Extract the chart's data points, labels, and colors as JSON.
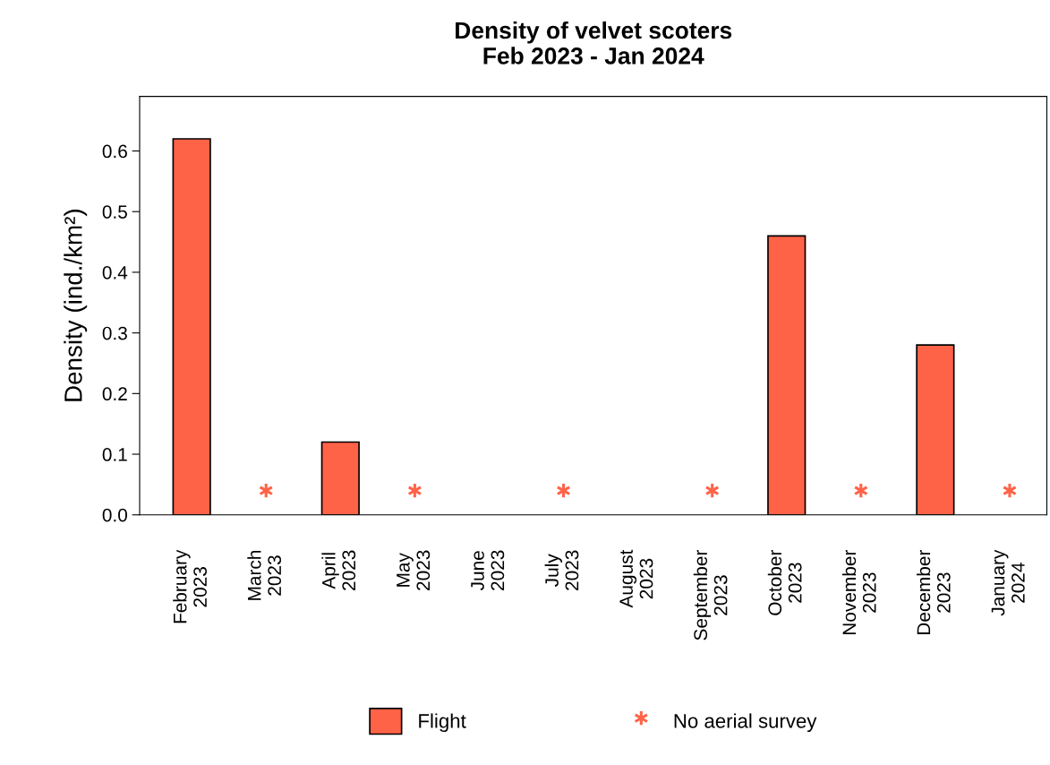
{
  "chart_data": {
    "type": "bar",
    "title": "Density of velvet scoters\nFeb 2023 - Jan 2024",
    "ylabel": "Density (ind./km²)",
    "categories": [
      "February\n2023",
      "March\n2023",
      "April\n2023",
      "May\n2023",
      "June\n2023",
      "July\n2023",
      "August\n2023",
      "September\n2023",
      "October\n2023",
      "November\n2023",
      "December\n2023",
      "January\n2024"
    ],
    "series": [
      {
        "name": "Flight",
        "color": "#ff6347",
        "values": [
          0.62,
          null,
          0.12,
          null,
          null,
          null,
          null,
          null,
          0.46,
          null,
          0.28,
          null
        ]
      },
      {
        "name": "No aerial survey",
        "type": "scatter",
        "marker": "cross",
        "color": "#ff6347",
        "x": [
          "March\n2023",
          "May\n2023",
          "July\n2023",
          "September\n2023",
          "November\n2023",
          "January\n2024"
        ],
        "values": [
          0.04,
          0.04,
          0.04,
          0.04,
          0.04,
          0.04
        ]
      }
    ],
    "ylim": [
      0,
      0.69
    ],
    "yticks": [
      {
        "value": 0,
        "label": "0.0"
      },
      0.1,
      0.2,
      0.3,
      0.4,
      0.5,
      0.6
    ],
    "grid": false,
    "legend": "bottom"
  }
}
